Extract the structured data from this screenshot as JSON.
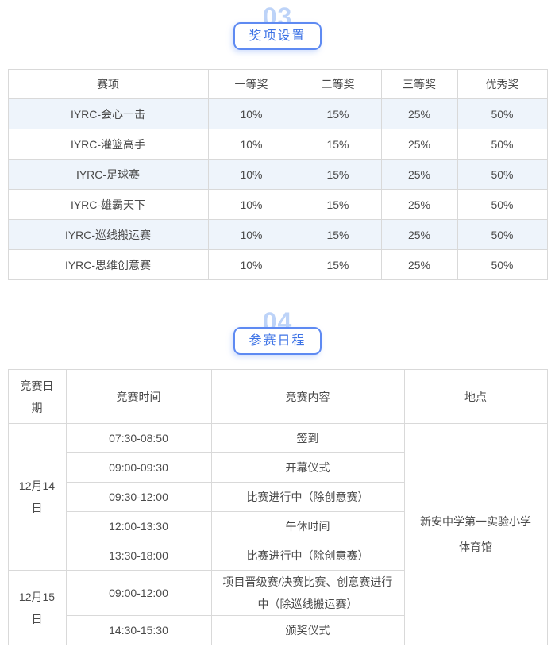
{
  "colors": {
    "accent_blue": "#3d73e6",
    "button_border_blue": "#5e8af2",
    "section_number_blue": "#bdd3f8",
    "row_highlight_blue": "#eef4fb",
    "table_border_gray": "#d9d9d9",
    "text_gray": "#4a4a4a"
  },
  "sections": [
    {
      "number": "03",
      "title": "奖项设置"
    },
    {
      "number": "04",
      "title": "参赛日程"
    }
  ],
  "awards_table": {
    "headers": [
      "赛项",
      "一等奖",
      "二等奖",
      "三等奖",
      "优秀奖"
    ],
    "rows": [
      [
        "IYRC-会心一击",
        "10%",
        "15%",
        "25%",
        "50%"
      ],
      [
        "IYRC-灌篮高手",
        "10%",
        "15%",
        "25%",
        "50%"
      ],
      [
        "IYRC-足球赛",
        "10%",
        "15%",
        "25%",
        "50%"
      ],
      [
        "IYRC-雄霸天下",
        "10%",
        "15%",
        "25%",
        "50%"
      ],
      [
        "IYRC-巡线搬运赛",
        "10%",
        "15%",
        "25%",
        "50%"
      ],
      [
        "IYRC-思维创意赛",
        "10%",
        "15%",
        "25%",
        "50%"
      ]
    ]
  },
  "schedule_table": {
    "headers": [
      "竞赛日期",
      "竞赛时间",
      "竞赛内容",
      "地点"
    ],
    "location_lines": [
      "新安中学第一实验小学",
      "体育馆"
    ],
    "day_groups": [
      {
        "date": "12月14日",
        "rows": [
          {
            "time": "07:30-08:50",
            "content": "签到"
          },
          {
            "time": "09:00-09:30",
            "content": "开幕仪式"
          },
          {
            "time": "09:30-12:00",
            "content": "比赛进行中（除创意赛）"
          },
          {
            "time": "12:00-13:30",
            "content": "午休时间"
          },
          {
            "time": "13:30-18:00",
            "content": "比赛进行中（除创意赛）"
          }
        ]
      },
      {
        "date": "12月15日",
        "rows": [
          {
            "time": "09:00-12:00",
            "content": "项目晋级赛/决赛比赛、创意赛进行中（除巡线搬运赛）"
          },
          {
            "time": "14:30-15:30",
            "content": "颁奖仪式"
          }
        ]
      }
    ]
  }
}
